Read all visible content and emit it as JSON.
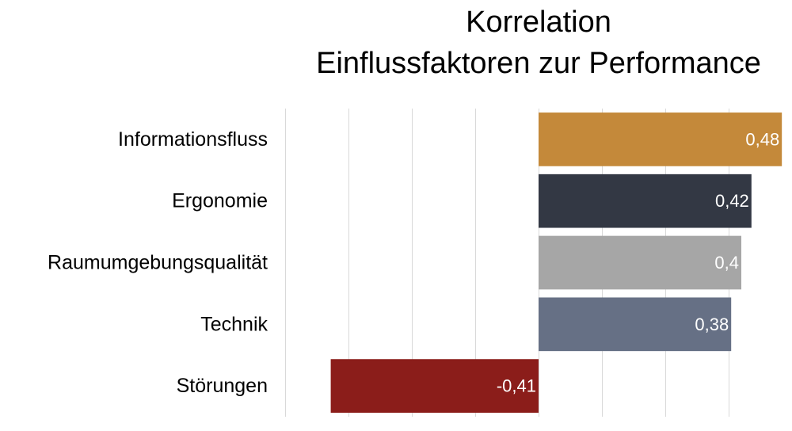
{
  "chart_data": {
    "type": "bar",
    "orientation": "horizontal",
    "title_lines": [
      "Korrelation",
      "Einflussfaktoren zur Performance"
    ],
    "categories": [
      "Informationsfluss",
      "Ergonomie",
      "Raumumgebungsqualität",
      "Technik",
      "Störungen"
    ],
    "values": [
      0.48,
      0.42,
      0.4,
      0.38,
      -0.41
    ],
    "data_labels": [
      "0,48",
      "0,42",
      "0,4",
      "0,38",
      "-0,41"
    ],
    "colors": [
      "#c4893a",
      "#333844",
      "#a6a6a6",
      "#667085",
      "#8b1d1a"
    ],
    "xlim": [
      -0.5,
      0.5
    ],
    "grid": true,
    "legend": false
  }
}
